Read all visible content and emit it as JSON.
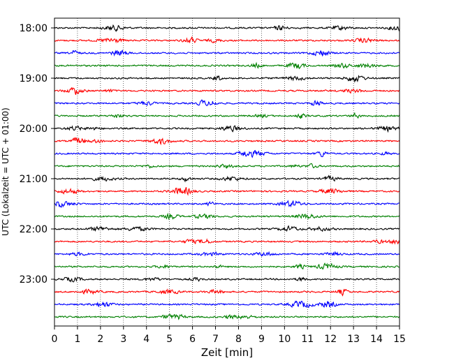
{
  "chart_data": {
    "type": "line",
    "title": "",
    "xlabel": "Zeit  [min]",
    "ylabel": "UTC (Lokalzeit = UTC + 01:00)",
    "xlim": [
      0,
      15
    ],
    "x_ticks": [
      0,
      1,
      2,
      3,
      4,
      5,
      6,
      7,
      8,
      9,
      10,
      11,
      12,
      13,
      14,
      15
    ],
    "y_tick_labels": [
      "18:00",
      "19:00",
      "20:00",
      "21:00",
      "22:00",
      "23:00"
    ],
    "vertical_grid": true,
    "grid_style": "dotted",
    "trace_interval_minutes": 15,
    "series": [
      {
        "start": "18:00",
        "color": "#000000"
      },
      {
        "start": "18:15",
        "color": "#ff0000"
      },
      {
        "start": "18:30",
        "color": "#0000ff"
      },
      {
        "start": "18:45",
        "color": "#008000"
      },
      {
        "start": "19:00",
        "color": "#000000"
      },
      {
        "start": "19:15",
        "color": "#ff0000"
      },
      {
        "start": "19:30",
        "color": "#0000ff"
      },
      {
        "start": "19:45",
        "color": "#008000"
      },
      {
        "start": "20:00",
        "color": "#000000"
      },
      {
        "start": "20:15",
        "color": "#ff0000"
      },
      {
        "start": "20:30",
        "color": "#0000ff"
      },
      {
        "start": "20:45",
        "color": "#008000"
      },
      {
        "start": "21:00",
        "color": "#000000"
      },
      {
        "start": "21:15",
        "color": "#ff0000"
      },
      {
        "start": "21:30",
        "color": "#0000ff"
      },
      {
        "start": "21:45",
        "color": "#008000"
      },
      {
        "start": "22:00",
        "color": "#000000"
      },
      {
        "start": "22:15",
        "color": "#ff0000"
      },
      {
        "start": "22:30",
        "color": "#0000ff"
      },
      {
        "start": "22:45",
        "color": "#008000"
      },
      {
        "start": "23:00",
        "color": "#000000"
      },
      {
        "start": "23:15",
        "color": "#ff0000"
      },
      {
        "start": "23:30",
        "color": "#0000ff"
      },
      {
        "start": "23:45",
        "color": "#008000"
      }
    ]
  }
}
